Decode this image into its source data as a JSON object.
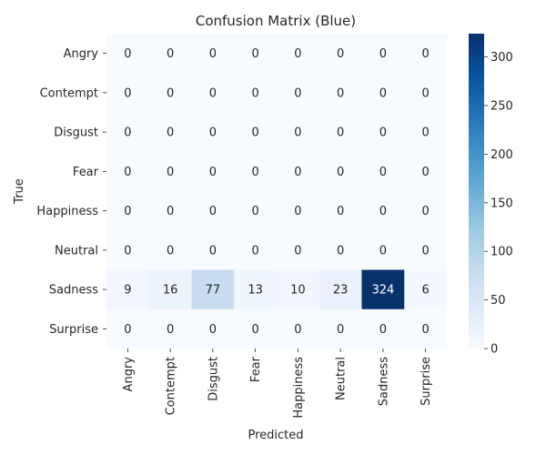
{
  "chart_data": {
    "type": "heatmap",
    "title": "Confusion Matrix (Blue)",
    "xlabel": "Predicted",
    "ylabel": "True",
    "x_categories": [
      "Angry",
      "Contempt",
      "Disgust",
      "Fear",
      "Happiness",
      "Neutral",
      "Sadness",
      "Surprise"
    ],
    "y_categories": [
      "Angry",
      "Contempt",
      "Disgust",
      "Fear",
      "Happiness",
      "Neutral",
      "Sadness",
      "Surprise"
    ],
    "values": [
      [
        0,
        0,
        0,
        0,
        0,
        0,
        0,
        0
      ],
      [
        0,
        0,
        0,
        0,
        0,
        0,
        0,
        0
      ],
      [
        0,
        0,
        0,
        0,
        0,
        0,
        0,
        0
      ],
      [
        0,
        0,
        0,
        0,
        0,
        0,
        0,
        0
      ],
      [
        0,
        0,
        0,
        0,
        0,
        0,
        0,
        0
      ],
      [
        0,
        0,
        0,
        0,
        0,
        0,
        0,
        0
      ],
      [
        9,
        16,
        77,
        13,
        10,
        23,
        324,
        6
      ],
      [
        0,
        0,
        0,
        0,
        0,
        0,
        0,
        0
      ]
    ],
    "colormap": "Blues",
    "colorbar": {
      "range": [
        0,
        324
      ],
      "ticks": [
        0,
        50,
        100,
        150,
        200,
        250,
        300
      ]
    }
  }
}
